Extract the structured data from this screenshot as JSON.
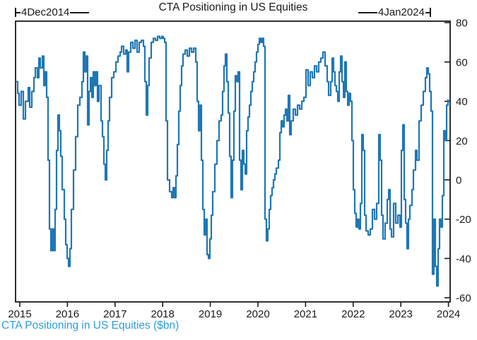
{
  "title": "CTA Positioning in US Equities",
  "annotations": {
    "start": "4Dec2014",
    "end": "4Jan2024"
  },
  "caption": "CTA Positioning in US Equities ($bn)",
  "colors": {
    "line": "#1f77b4",
    "caption": "#2d9ddb",
    "axis": "#1a1a1a"
  },
  "chart_data": {
    "type": "line",
    "title": "CTA Positioning in US Equities",
    "ylabel": "$bn",
    "xlabel": "",
    "legend": "none",
    "grid": false,
    "y_axis_side": "right",
    "range_labels": [
      "4Dec2014",
      "4Jan2024"
    ],
    "x_ticks": [
      2015,
      2016,
      2017,
      2018,
      2019,
      2020,
      2021,
      2022,
      2023,
      2024
    ],
    "y_ticks": [
      80,
      60,
      40,
      20,
      0,
      -20,
      -40,
      -60
    ],
    "ylim": [
      -62,
      81
    ],
    "xlim_years": [
      2014.9,
      2024.05
    ],
    "series": [
      {
        "name": "CTA Positioning in US Equities ($bn)",
        "points": [
          [
            2014.911,
            50
          ],
          [
            2014.955,
            44
          ],
          [
            2014.985,
            38
          ],
          [
            2015.03,
            45
          ],
          [
            2015.074,
            31
          ],
          [
            2015.119,
            40
          ],
          [
            2015.178,
            47
          ],
          [
            2015.208,
            37
          ],
          [
            2015.252,
            45
          ],
          [
            2015.297,
            52
          ],
          [
            2015.326,
            57
          ],
          [
            2015.371,
            52
          ],
          [
            2015.401,
            62
          ],
          [
            2015.43,
            57
          ],
          [
            2015.475,
            63
          ],
          [
            2015.504,
            48
          ],
          [
            2015.534,
            55
          ],
          [
            2015.564,
            42
          ],
          [
            2015.593,
            10
          ],
          [
            2015.623,
            -25
          ],
          [
            2015.653,
            -36
          ],
          [
            2015.682,
            -25
          ],
          [
            2015.712,
            -36
          ],
          [
            2015.742,
            -15
          ],
          [
            2015.772,
            15
          ],
          [
            2015.801,
            33
          ],
          [
            2015.831,
            25
          ],
          [
            2015.861,
            12
          ],
          [
            2015.89,
            -5
          ],
          [
            2015.935,
            -20
          ],
          [
            2015.964,
            -33
          ],
          [
            2015.994,
            -40
          ],
          [
            2016.024,
            -44
          ],
          [
            2016.053,
            -35
          ],
          [
            2016.083,
            -15
          ],
          [
            2016.128,
            5
          ],
          [
            2016.172,
            22
          ],
          [
            2016.217,
            38
          ],
          [
            2016.261,
            42
          ],
          [
            2016.306,
            50
          ],
          [
            2016.335,
            65
          ],
          [
            2016.365,
            55
          ],
          [
            2016.395,
            63
          ],
          [
            2016.424,
            28
          ],
          [
            2016.454,
            45
          ],
          [
            2016.484,
            52
          ],
          [
            2016.513,
            42
          ],
          [
            2016.543,
            55
          ],
          [
            2016.573,
            48
          ],
          [
            2016.602,
            55
          ],
          [
            2016.632,
            40
          ],
          [
            2016.662,
            48
          ],
          [
            2016.706,
            30
          ],
          [
            2016.736,
            22
          ],
          [
            2016.766,
            8
          ],
          [
            2016.795,
            0
          ],
          [
            2016.825,
            15
          ],
          [
            2016.854,
            30
          ],
          [
            2016.884,
            42
          ],
          [
            2016.929,
            52
          ],
          [
            2016.973,
            55
          ],
          [
            2017.018,
            60
          ],
          [
            2017.062,
            63
          ],
          [
            2017.107,
            65
          ],
          [
            2017.136,
            68
          ],
          [
            2017.181,
            64
          ],
          [
            2017.226,
            66
          ],
          [
            2017.255,
            55
          ],
          [
            2017.285,
            65
          ],
          [
            2017.329,
            70
          ],
          [
            2017.374,
            67
          ],
          [
            2017.418,
            71
          ],
          [
            2017.463,
            65
          ],
          [
            2017.507,
            70
          ],
          [
            2017.552,
            71
          ],
          [
            2017.596,
            68
          ],
          [
            2017.626,
            50
          ],
          [
            2017.656,
            33
          ],
          [
            2017.685,
            48
          ],
          [
            2017.715,
            62
          ],
          [
            2017.76,
            70
          ],
          [
            2017.804,
            72
          ],
          [
            2017.849,
            71
          ],
          [
            2017.893,
            73
          ],
          [
            2017.938,
            72
          ],
          [
            2017.982,
            73
          ],
          [
            2018.012,
            72
          ],
          [
            2018.042,
            70
          ],
          [
            2018.071,
            30
          ],
          [
            2018.101,
            0
          ],
          [
            2018.145,
            -6
          ],
          [
            2018.19,
            -9
          ],
          [
            2018.22,
            -4
          ],
          [
            2018.249,
            -9
          ],
          [
            2018.279,
            2
          ],
          [
            2018.309,
            18
          ],
          [
            2018.338,
            35
          ],
          [
            2018.368,
            48
          ],
          [
            2018.398,
            58
          ],
          [
            2018.427,
            64
          ],
          [
            2018.472,
            66
          ],
          [
            2018.516,
            63
          ],
          [
            2018.561,
            67
          ],
          [
            2018.605,
            65
          ],
          [
            2018.65,
            67
          ],
          [
            2018.694,
            60
          ],
          [
            2018.724,
            40
          ],
          [
            2018.754,
            25
          ],
          [
            2018.783,
            38
          ],
          [
            2018.813,
            10
          ],
          [
            2018.843,
            -15
          ],
          [
            2018.872,
            -28
          ],
          [
            2018.902,
            -20
          ],
          [
            2018.932,
            -38
          ],
          [
            2018.961,
            -40
          ],
          [
            2018.991,
            -30
          ],
          [
            2019.021,
            -18
          ],
          [
            2019.05,
            -6
          ],
          [
            2019.095,
            8
          ],
          [
            2019.139,
            20
          ],
          [
            2019.184,
            30
          ],
          [
            2019.228,
            33
          ],
          [
            2019.258,
            45
          ],
          [
            2019.288,
            58
          ],
          [
            2019.317,
            64
          ],
          [
            2019.347,
            50
          ],
          [
            2019.377,
            34
          ],
          [
            2019.406,
            12
          ],
          [
            2019.436,
            -9
          ],
          [
            2019.466,
            10
          ],
          [
            2019.495,
            35
          ],
          [
            2019.525,
            53
          ],
          [
            2019.555,
            50
          ],
          [
            2019.584,
            55
          ],
          [
            2019.614,
            10
          ],
          [
            2019.644,
            -5
          ],
          [
            2019.673,
            15
          ],
          [
            2019.703,
            8
          ],
          [
            2019.733,
            3
          ],
          [
            2019.762,
            25
          ],
          [
            2019.792,
            32
          ],
          [
            2019.822,
            38
          ],
          [
            2019.851,
            45
          ],
          [
            2019.881,
            50
          ],
          [
            2019.911,
            55
          ],
          [
            2019.94,
            60
          ],
          [
            2019.97,
            65
          ],
          [
            2020.0,
            69
          ],
          [
            2020.03,
            72
          ],
          [
            2020.059,
            70
          ],
          [
            2020.089,
            72
          ],
          [
            2020.119,
            68
          ],
          [
            2020.148,
            -20
          ],
          [
            2020.178,
            -31
          ],
          [
            2020.208,
            -25
          ],
          [
            2020.237,
            -15
          ],
          [
            2020.267,
            -8
          ],
          [
            2020.297,
            -4
          ],
          [
            2020.326,
            0
          ],
          [
            2020.356,
            3
          ],
          [
            2020.386,
            6
          ],
          [
            2020.43,
            10
          ],
          [
            2020.46,
            24
          ],
          [
            2020.49,
            30
          ],
          [
            2020.519,
            27
          ],
          [
            2020.549,
            33
          ],
          [
            2020.579,
            36
          ],
          [
            2020.608,
            30
          ],
          [
            2020.638,
            43
          ],
          [
            2020.668,
            23
          ],
          [
            2020.697,
            30
          ],
          [
            2020.742,
            36
          ],
          [
            2020.786,
            33
          ],
          [
            2020.831,
            38
          ],
          [
            2020.875,
            36
          ],
          [
            2020.92,
            40
          ],
          [
            2020.964,
            42
          ],
          [
            2021.009,
            56
          ],
          [
            2021.053,
            48
          ],
          [
            2021.098,
            55
          ],
          [
            2021.142,
            52
          ],
          [
            2021.187,
            58
          ],
          [
            2021.231,
            55
          ],
          [
            2021.276,
            60
          ],
          [
            2021.32,
            62
          ],
          [
            2021.365,
            65
          ],
          [
            2021.409,
            58
          ],
          [
            2021.454,
            50
          ],
          [
            2021.484,
            43
          ],
          [
            2021.528,
            50
          ],
          [
            2021.558,
            62
          ],
          [
            2021.588,
            55
          ],
          [
            2021.617,
            48
          ],
          [
            2021.647,
            45
          ],
          [
            2021.677,
            40
          ],
          [
            2021.706,
            55
          ],
          [
            2021.736,
            63
          ],
          [
            2021.766,
            50
          ],
          [
            2021.796,
            42
          ],
          [
            2021.825,
            60
          ],
          [
            2021.855,
            45
          ],
          [
            2021.885,
            38
          ],
          [
            2021.914,
            44
          ],
          [
            2021.944,
            40
          ],
          [
            2021.974,
            20
          ],
          [
            2022.003,
            -5
          ],
          [
            2022.033,
            -17
          ],
          [
            2022.063,
            -24
          ],
          [
            2022.092,
            -20
          ],
          [
            2022.122,
            -25
          ],
          [
            2022.152,
            -12
          ],
          [
            2022.181,
            23
          ],
          [
            2022.211,
            15
          ],
          [
            2022.241,
            -18
          ],
          [
            2022.27,
            -26
          ],
          [
            2022.315,
            -28
          ],
          [
            2022.359,
            -25
          ],
          [
            2022.404,
            -15
          ],
          [
            2022.448,
            -20
          ],
          [
            2022.493,
            -12
          ],
          [
            2022.537,
            23
          ],
          [
            2022.567,
            10
          ],
          [
            2022.597,
            -18
          ],
          [
            2022.626,
            -30
          ],
          [
            2022.671,
            -22
          ],
          [
            2022.715,
            -10
          ],
          [
            2022.745,
            -5
          ],
          [
            2022.775,
            -25
          ],
          [
            2022.804,
            -29
          ],
          [
            2022.849,
            -12
          ],
          [
            2022.893,
            -22
          ],
          [
            2022.938,
            -18
          ],
          [
            2022.982,
            -24
          ],
          [
            2023.012,
            15
          ],
          [
            2023.042,
            28
          ],
          [
            2023.071,
            -10
          ],
          [
            2023.101,
            -22
          ],
          [
            2023.131,
            -35
          ],
          [
            2023.16,
            -20
          ],
          [
            2023.19,
            -13
          ],
          [
            2023.234,
            -5
          ],
          [
            2023.264,
            5
          ],
          [
            2023.308,
            15
          ],
          [
            2023.338,
            10
          ],
          [
            2023.383,
            30
          ],
          [
            2023.427,
            38
          ],
          [
            2023.472,
            45
          ],
          [
            2023.516,
            52
          ],
          [
            2023.546,
            57
          ],
          [
            2023.576,
            54
          ],
          [
            2023.605,
            45
          ],
          [
            2023.635,
            35
          ],
          [
            2023.665,
            -48
          ],
          [
            2023.694,
            -20
          ],
          [
            2023.724,
            -44
          ],
          [
            2023.754,
            -54
          ],
          [
            2023.784,
            -35
          ],
          [
            2023.813,
            -20
          ],
          [
            2023.843,
            -24
          ],
          [
            2023.873,
            -8
          ],
          [
            2023.902,
            25
          ],
          [
            2023.932,
            20
          ],
          [
            2023.962,
            38
          ],
          [
            2023.991,
            41
          ]
        ]
      }
    ]
  }
}
